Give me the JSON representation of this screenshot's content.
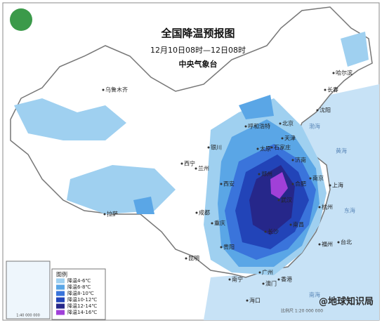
{
  "header": {
    "title": "全国降温预报图",
    "subtitle": "12月10日08时—12日08时",
    "issuer": "中央气象台"
  },
  "legend": {
    "title": "图例",
    "items": [
      {
        "label": "降温4-6℃",
        "color": "#9fd0f0"
      },
      {
        "label": "降温6-8℃",
        "color": "#5aa6e6"
      },
      {
        "label": "降温8-10℃",
        "color": "#3a74db"
      },
      {
        "label": "降温10-12℃",
        "color": "#2244b8"
      },
      {
        "label": "降温12-14℃",
        "color": "#26278a"
      },
      {
        "label": "降温14-16℃",
        "color": "#a040d8"
      }
    ]
  },
  "cities": [
    "乌鲁木齐",
    "哈尔滨",
    "长春",
    "沈阳",
    "呼和浩特",
    "北京",
    "天津",
    "银川",
    "太原",
    "石家庄",
    "西宁",
    "兰州",
    "济南",
    "西安",
    "郑州",
    "合肥",
    "南京",
    "上海",
    "杭州",
    "武汉",
    "成都",
    "拉萨",
    "重庆",
    "长沙",
    "南昌",
    "福州",
    "台北",
    "贵阳",
    "昆明",
    "广州",
    "南宁",
    "澳门",
    "香港",
    "海口"
  ],
  "sea_labels": [
    "渤海",
    "黄海",
    "东海",
    "南海"
  ],
  "inset_scale": "1:40 000 000",
  "scale": "比例尺 1:20 000 000",
  "watermark": "@地球知识局"
}
